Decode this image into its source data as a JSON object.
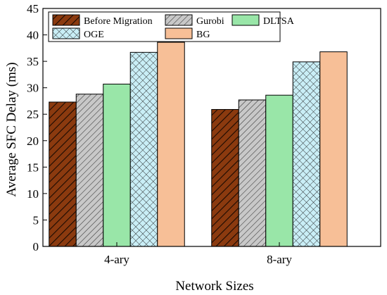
{
  "chart_data": {
    "type": "bar",
    "title": "",
    "xlabel": "Network Sizes",
    "ylabel": "Average SFC Delay (ms)",
    "ylim": [
      0,
      45
    ],
    "yticks": [
      "0",
      "5",
      "10",
      "15",
      "20",
      "25",
      "30",
      "35",
      "40",
      "45"
    ],
    "categories": [
      "4-ary",
      "8-ary"
    ],
    "series": [
      {
        "name": "Before Migration",
        "values": [
          27.3,
          25.9
        ],
        "color": "#8b3a0f",
        "pattern": "diagonal-hatch-dark"
      },
      {
        "name": "Gurobi",
        "values": [
          28.8,
          27.7
        ],
        "color": "#c8c8c8",
        "pattern": "diagonal-hatch-light"
      },
      {
        "name": "DLTSA",
        "values": [
          30.7,
          28.6
        ],
        "color": "#99e6a8",
        "pattern": "solid"
      },
      {
        "name": "OGE",
        "values": [
          36.7,
          34.9
        ],
        "color": "#c9eef6",
        "pattern": "crosshatch"
      },
      {
        "name": "BG",
        "values": [
          38.6,
          36.8
        ],
        "color": "#f7bf97",
        "pattern": "solid"
      }
    ],
    "legend": "top-left, inside plot, 3 columns",
    "grid": false
  }
}
